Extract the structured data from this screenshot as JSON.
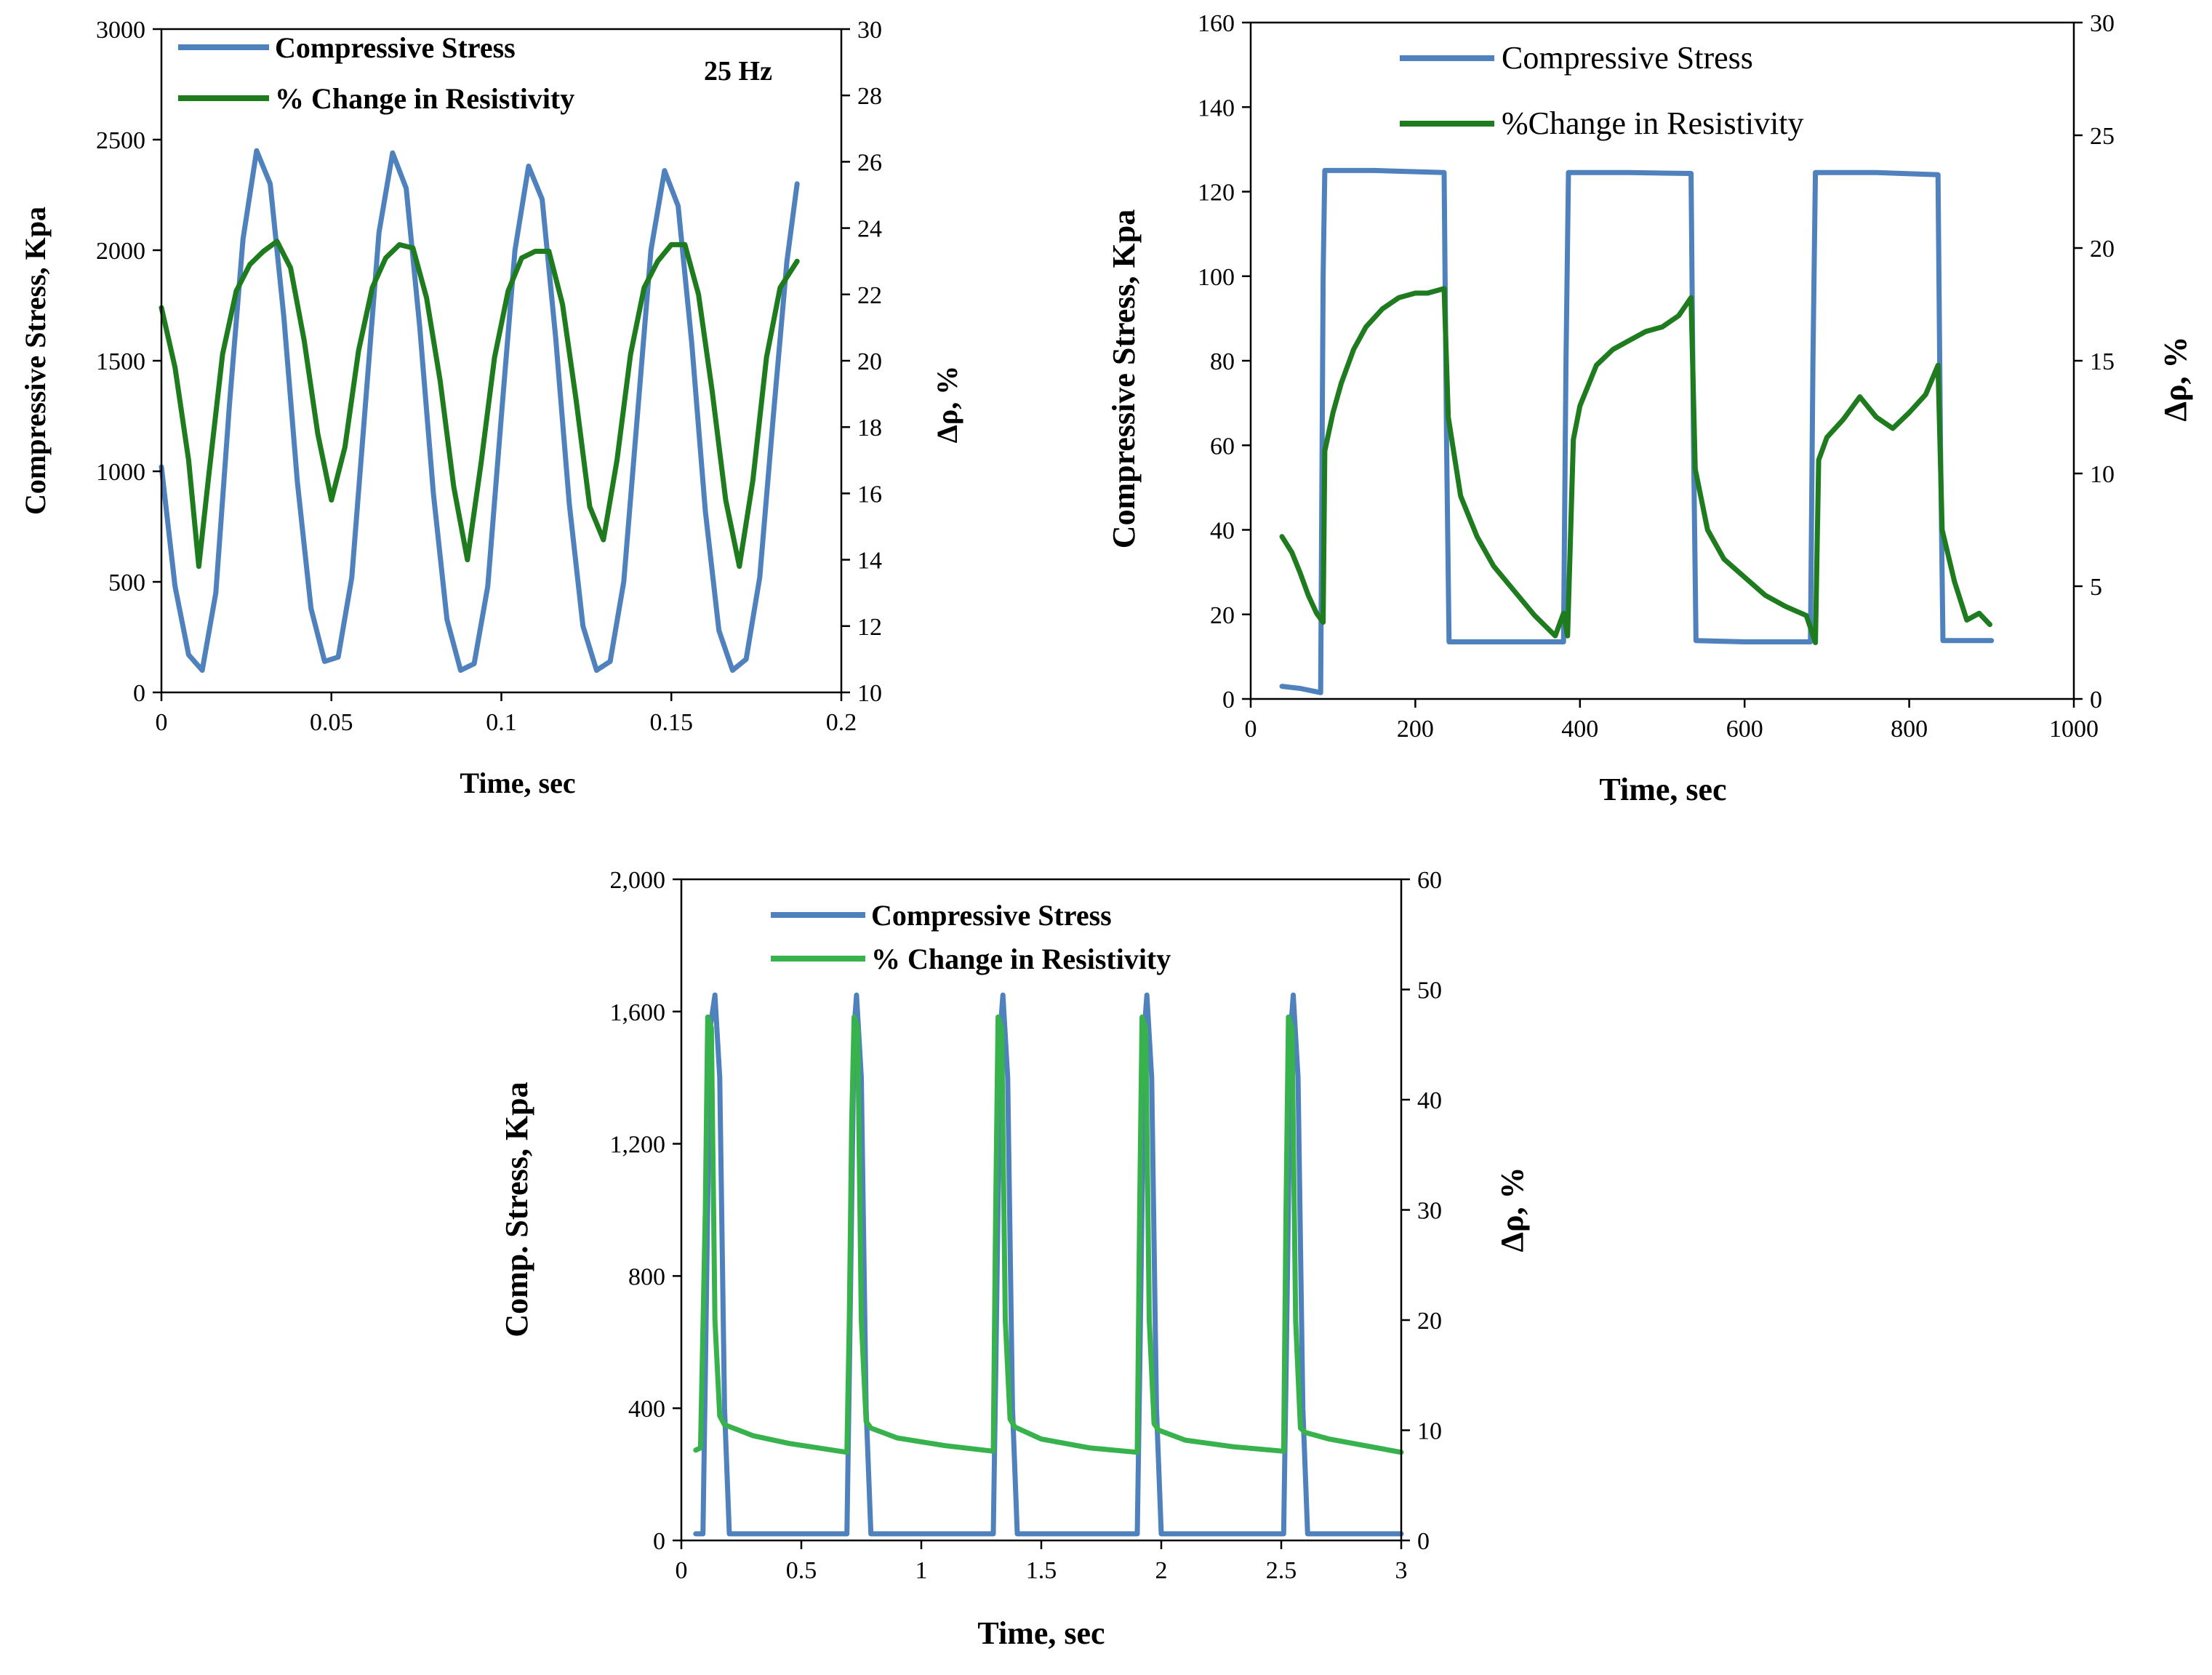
{
  "chart_data": [
    {
      "type": "line",
      "id": "chart1",
      "annotation": "25 Hz",
      "xlabel": "Time, sec",
      "ylabel": "Compressive Stress, Kpa",
      "y2label": "Δρ, %",
      "xlim": [
        0,
        0.2
      ],
      "ylim": [
        0,
        3000
      ],
      "y2lim": [
        10,
        30
      ],
      "xticks": [
        "0",
        "0.05",
        "0.1",
        "0.15",
        "0.2"
      ],
      "yticks": [
        "0",
        "500",
        "1000",
        "1500",
        "2000",
        "2500",
        "3000"
      ],
      "y2ticks": [
        "10",
        "12",
        "14",
        "16",
        "18",
        "20",
        "22",
        "24",
        "26",
        "28",
        "30"
      ],
      "legend_position": "top-left",
      "series": [
        {
          "name": "Compressive Stress",
          "axis": "left",
          "color": "#4f81bd",
          "x": [
            0.0,
            0.004,
            0.008,
            0.012,
            0.016,
            0.02,
            0.024,
            0.028,
            0.032,
            0.036,
            0.04,
            0.044,
            0.048,
            0.052,
            0.056,
            0.06,
            0.064,
            0.068,
            0.072,
            0.076,
            0.08,
            0.084,
            0.088,
            0.092,
            0.096,
            0.1,
            0.104,
            0.108,
            0.112,
            0.116,
            0.12,
            0.124,
            0.128,
            0.132,
            0.136,
            0.14,
            0.144,
            0.148,
            0.152,
            0.156,
            0.16,
            0.164,
            0.168,
            0.172,
            0.176,
            0.18,
            0.184,
            0.187
          ],
          "y": [
            1020,
            480,
            170,
            100,
            450,
            1300,
            2050,
            2450,
            2300,
            1700,
            950,
            380,
            140,
            160,
            520,
            1300,
            2080,
            2440,
            2280,
            1650,
            900,
            330,
            100,
            130,
            480,
            1250,
            2000,
            2380,
            2230,
            1600,
            850,
            300,
            100,
            140,
            500,
            1250,
            2000,
            2360,
            2200,
            1580,
            820,
            280,
            100,
            150,
            520,
            1250,
            1950,
            2300
          ]
        },
        {
          "name": "% Change in Resistivity",
          "axis": "right",
          "color": "#1e7b1e",
          "x": [
            0.0,
            0.004,
            0.008,
            0.011,
            0.014,
            0.018,
            0.022,
            0.026,
            0.03,
            0.034,
            0.038,
            0.042,
            0.046,
            0.05,
            0.054,
            0.058,
            0.062,
            0.066,
            0.07,
            0.074,
            0.078,
            0.082,
            0.086,
            0.09,
            0.094,
            0.098,
            0.102,
            0.106,
            0.11,
            0.114,
            0.118,
            0.122,
            0.126,
            0.13,
            0.134,
            0.138,
            0.142,
            0.146,
            0.15,
            0.154,
            0.158,
            0.162,
            0.166,
            0.17,
            0.174,
            0.178,
            0.182,
            0.187
          ],
          "y": [
            21.6,
            19.8,
            17.0,
            13.8,
            16.6,
            20.2,
            22.1,
            22.9,
            23.3,
            23.6,
            22.8,
            20.6,
            17.8,
            15.8,
            17.4,
            20.3,
            22.2,
            23.1,
            23.5,
            23.4,
            21.9,
            19.4,
            16.2,
            14.0,
            16.9,
            20.1,
            22.1,
            23.1,
            23.3,
            23.3,
            21.7,
            18.8,
            15.6,
            14.6,
            17.0,
            20.2,
            22.2,
            23.0,
            23.5,
            23.5,
            22.0,
            19.1,
            15.8,
            13.8,
            16.4,
            20.1,
            22.2,
            23.0
          ]
        }
      ]
    },
    {
      "type": "line",
      "id": "chart2",
      "xlabel": "Time, sec",
      "ylabel": "Compressive Stress, Kpa",
      "y2label": "Δρ, %",
      "xlim": [
        0,
        1000
      ],
      "ylim": [
        0,
        160
      ],
      "y2lim": [
        0,
        30
      ],
      "xticks": [
        "0",
        "200",
        "400",
        "600",
        "800",
        "1000"
      ],
      "yticks": [
        "0",
        "20",
        "40",
        "60",
        "80",
        "100",
        "120",
        "140",
        "160"
      ],
      "y2ticks": [
        "0",
        "5",
        "10",
        "15",
        "20",
        "25",
        "30"
      ],
      "legend_position": "top-center",
      "series": [
        {
          "name": "Compressive Stress",
          "axis": "left",
          "color": "#4f81bd",
          "x": [
            38,
            60,
            85,
            88,
            90,
            150,
            235,
            238,
            241,
            300,
            380,
            383,
            386,
            460,
            535,
            538,
            541,
            600,
            680,
            683,
            686,
            760,
            835,
            838,
            841,
            900
          ],
          "y": [
            3,
            2.5,
            1.5,
            100,
            125,
            125,
            124.5,
            60,
            13.5,
            13.5,
            13.5,
            80,
            124.5,
            124.5,
            124.3,
            60,
            13.8,
            13.5,
            13.5,
            80,
            124.5,
            124.5,
            124.0,
            60,
            13.8,
            13.8
          ]
        },
        {
          "name": "%Change in Resistivity",
          "axis": "right",
          "color": "#1e7b1e",
          "x": [
            38,
            50,
            60,
            70,
            80,
            88,
            90,
            100,
            110,
            125,
            140,
            160,
            180,
            200,
            215,
            235,
            240,
            255,
            275,
            295,
            320,
            345,
            370,
            380,
            385,
            392,
            400,
            420,
            440,
            460,
            480,
            500,
            520,
            535,
            540,
            555,
            575,
            600,
            625,
            650,
            675,
            686,
            690,
            700,
            720,
            740,
            760,
            780,
            800,
            820,
            835,
            840,
            855,
            870,
            885,
            898
          ],
          "y": [
            7.2,
            6.5,
            5.6,
            4.6,
            3.8,
            3.4,
            11.0,
            12.7,
            14.0,
            15.5,
            16.5,
            17.3,
            17.8,
            18.0,
            18.0,
            18.2,
            12.5,
            9.0,
            7.2,
            5.9,
            4.8,
            3.7,
            2.8,
            3.8,
            2.8,
            11.5,
            13.0,
            14.8,
            15.5,
            15.9,
            16.3,
            16.5,
            17.0,
            17.8,
            10.2,
            7.5,
            6.2,
            5.4,
            4.6,
            4.1,
            3.7,
            2.5,
            10.6,
            11.6,
            12.4,
            13.4,
            12.5,
            12.0,
            12.7,
            13.5,
            14.8,
            7.5,
            5.2,
            3.5,
            3.8,
            3.3
          ]
        }
      ]
    },
    {
      "type": "line",
      "id": "chart3",
      "xlabel": "Time, sec",
      "ylabel": "Comp. Stress, Kpa",
      "y2label": "Δρ, %",
      "xlim": [
        0,
        3
      ],
      "ylim": [
        0,
        2000
      ],
      "y2lim": [
        0,
        60
      ],
      "xticks": [
        "0",
        "0.5",
        "1",
        "1.5",
        "2",
        "2.5",
        "3"
      ],
      "yticks": [
        "0",
        "400",
        "800",
        "1,200",
        "1,600",
        "2,000"
      ],
      "y2ticks": [
        "0",
        "10",
        "20",
        "30",
        "40",
        "50",
        "60"
      ],
      "legend_position": "top-left",
      "pulse_times": [
        0.12,
        0.73,
        1.34,
        1.94,
        2.55
      ],
      "series": [
        {
          "name": "Compressive Stress",
          "axis": "left",
          "color": "#4f81bd",
          "x": [
            0.06,
            0.09,
            0.1,
            0.12,
            0.14,
            0.16,
            0.18,
            0.2,
            0.4,
            0.69,
            0.7,
            0.72,
            0.73,
            0.75,
            0.77,
            0.79,
            0.81,
            1.0,
            1.3,
            1.31,
            1.33,
            1.34,
            1.36,
            1.38,
            1.4,
            1.42,
            1.6,
            1.9,
            1.91,
            1.93,
            1.94,
            1.96,
            1.98,
            2.0,
            2.02,
            2.2,
            2.51,
            2.52,
            2.54,
            2.55,
            2.57,
            2.59,
            2.61,
            2.63,
            2.8,
            3.0
          ],
          "y": [
            20,
            20,
            500,
            1550,
            1650,
            1400,
            400,
            20,
            20,
            20,
            500,
            1550,
            1650,
            1400,
            400,
            20,
            20,
            20,
            20,
            500,
            1550,
            1650,
            1400,
            400,
            20,
            20,
            20,
            20,
            500,
            1550,
            1650,
            1400,
            400,
            20,
            20,
            20,
            20,
            500,
            1550,
            1650,
            1400,
            400,
            20,
            20,
            20,
            20
          ]
        },
        {
          "name": "% Change in Resistivity",
          "axis": "right",
          "color": "#37b24d",
          "x": [
            0.06,
            0.08,
            0.1,
            0.11,
            0.125,
            0.14,
            0.16,
            0.18,
            0.3,
            0.45,
            0.69,
            0.7,
            0.71,
            0.72,
            0.735,
            0.75,
            0.77,
            0.79,
            0.9,
            1.1,
            1.3,
            1.31,
            1.32,
            1.335,
            1.35,
            1.37,
            1.39,
            1.5,
            1.7,
            1.9,
            1.91,
            1.92,
            1.935,
            1.95,
            1.97,
            1.99,
            2.1,
            2.3,
            2.51,
            2.52,
            2.53,
            2.545,
            2.56,
            2.58,
            2.6,
            2.7,
            2.85,
            3.0
          ],
          "y": [
            8.2,
            8.4,
            30,
            47.5,
            46.5,
            20,
            11.3,
            10.5,
            9.5,
            8.8,
            8.0,
            20,
            38,
            47.5,
            46.5,
            20,
            10.8,
            10.2,
            9.3,
            8.6,
            8.1,
            30,
            47.5,
            46.5,
            20,
            11.0,
            10.3,
            9.2,
            8.4,
            8.0,
            30,
            47.5,
            46.5,
            20,
            10.6,
            10.0,
            9.1,
            8.5,
            8.1,
            30,
            47.5,
            46.5,
            20,
            10.2,
            9.8,
            9.2,
            8.6,
            8.0
          ]
        }
      ]
    }
  ]
}
